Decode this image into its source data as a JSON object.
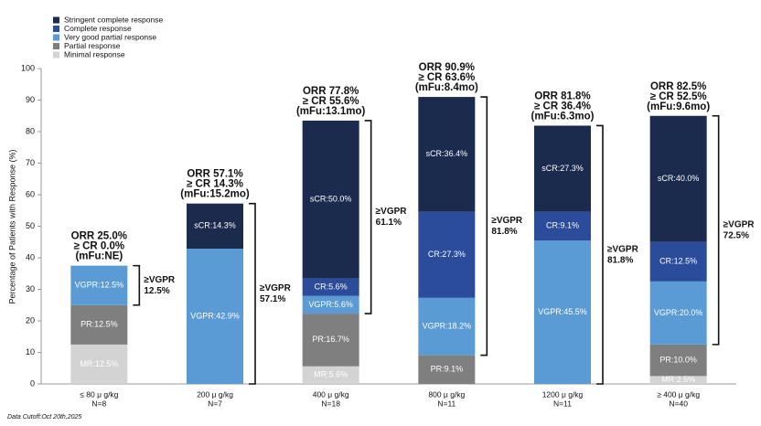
{
  "chart_data": {
    "type": "stacked_bar",
    "y_axis_label": "Percentage of Patients with Response (%)",
    "footnote": "Data Cutoff:Oct 20th,2025",
    "categories": [
      "≤ 80 μ g/kg",
      "200 μ g/kg",
      "400 μ g/kg",
      "800 μ g/kg",
      "1200 μ g/kg",
      "≥ 400 μ g/kg"
    ],
    "category_n": [
      "N=8",
      "N=7",
      "N=18",
      "N=11",
      "N=11",
      "N=40"
    ],
    "ylim": [
      0,
      100
    ],
    "yticks": [
      0,
      10,
      20,
      30,
      40,
      50,
      60,
      70,
      80,
      90,
      100
    ],
    "legend_position": "upper left",
    "series": [
      {
        "name": "Minimal response",
        "color": "#d3d3d3",
        "values": [
          12.5,
          null,
          5.6,
          null,
          null,
          2.5
        ],
        "value_labels": [
          "MR:12.5%",
          null,
          "MR:5.6%",
          null,
          null,
          "MR:2.5%"
        ]
      },
      {
        "name": "Partial response",
        "color": "#7f7f7f",
        "values": [
          12.5,
          null,
          16.7,
          9.1,
          null,
          10.0
        ],
        "value_labels": [
          "PR:12.5%",
          null,
          "PR:16.7%",
          "PR:9.1%",
          null,
          "PR:10.0%"
        ]
      },
      {
        "name": "Very good partial response",
        "color": "#5b9bd5",
        "values": [
          12.5,
          42.9,
          5.6,
          18.2,
          45.5,
          20.0
        ],
        "value_labels": [
          "VGPR:12.5%",
          "VGPR:42.9%",
          "VGPR:5.6%",
          "VGPR:18.2%",
          "VGPR:45.5%",
          "VGPR:20.0%"
        ]
      },
      {
        "name": "Complete response",
        "color": "#2b4c9b",
        "values": [
          null,
          null,
          5.6,
          27.3,
          9.1,
          12.5
        ],
        "value_labels": [
          null,
          null,
          "CR:5.6%",
          "CR:27.3%",
          "CR:9.1%",
          "CR:12.5%"
        ]
      },
      {
        "name": "Stringent complete response",
        "color": "#1b2b4d",
        "values": [
          null,
          14.3,
          50.0,
          36.4,
          27.3,
          40.0
        ],
        "value_labels": [
          null,
          "sCR:14.3%",
          "sCR:50.0%",
          "sCR:36.4%",
          "sCR:27.3%",
          "sCR:40.0%"
        ]
      }
    ],
    "orr_labels": [
      "ORR 25.0%",
      "ORR 57.1%",
      "ORR 77.8%",
      "ORR 90.9%",
      "ORR 81.8%",
      "ORR 82.5%"
    ],
    "cr_labels": [
      "≥ CR 0.0%",
      "≥ CR 14.3%",
      "≥ CR 55.6%",
      "≥ CR 63.6%",
      "≥ CR 36.4%",
      "≥ CR 52.5%"
    ],
    "mfu_labels": [
      "(mFu:NE)",
      "(mFu:15.2mo)",
      "(mFu:13.1mo)",
      "(mFu:8.4mo)",
      "(mFu:6.3mo)",
      "(mFu:9.6mo)"
    ],
    "bracket_titles": [
      "≥VGPR",
      "≥VGPR",
      "≥VGPR",
      "≥VGPR",
      "≥VGPR",
      "≥VGPR"
    ],
    "bracket_values": [
      "12.5%",
      "57.1%",
      "61.1%",
      "81.8%",
      "81.8%",
      "72.5%"
    ]
  }
}
